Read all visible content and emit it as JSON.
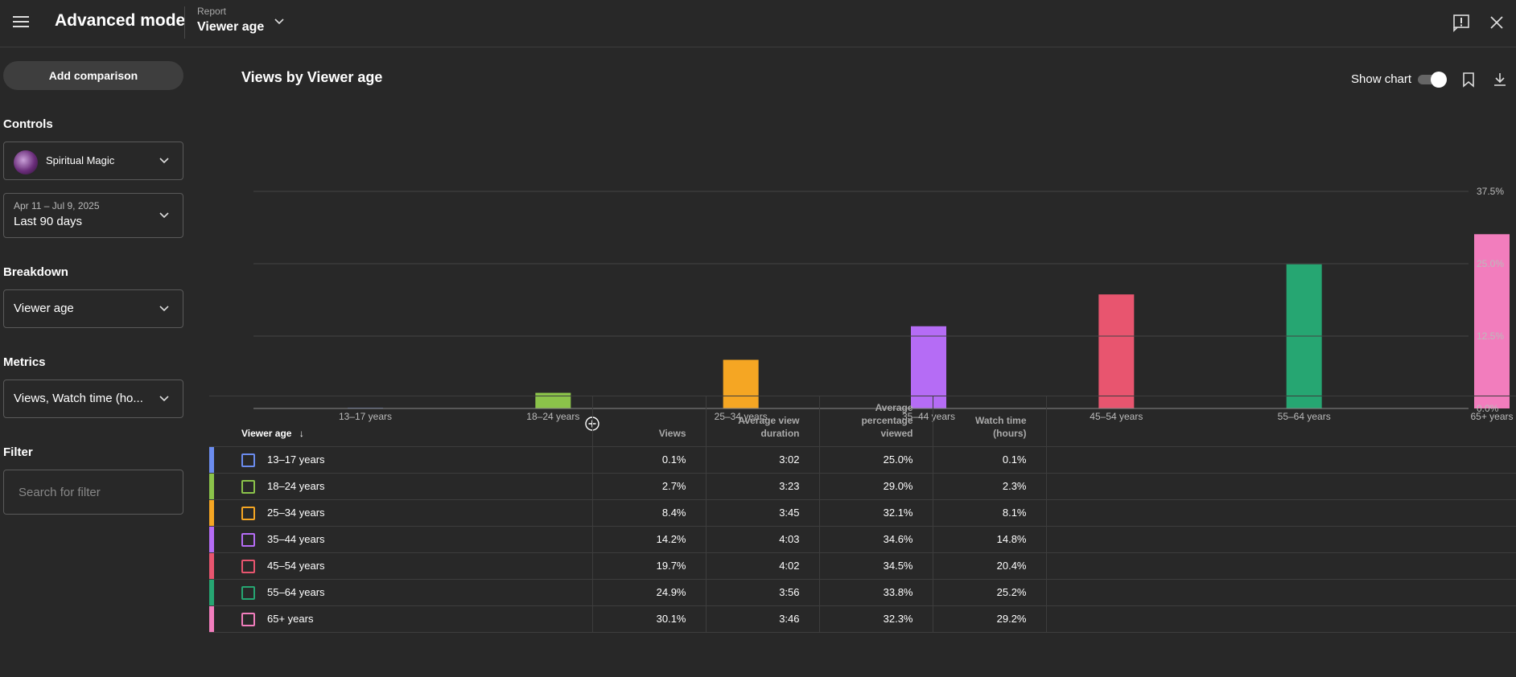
{
  "header": {
    "title": "Advanced mode",
    "report_label": "Report",
    "report_value": "Viewer age"
  },
  "sidebar": {
    "add_comparison": "Add comparison",
    "controls_label": "Controls",
    "channel_name": "Spiritual Magic",
    "date_range_sub": "Apr 11 – Jul 9, 2025",
    "date_range": "Last 90 days",
    "breakdown_label": "Breakdown",
    "breakdown_value": "Viewer age",
    "metrics_label": "Metrics",
    "metrics_value": "Views, Watch time (ho...",
    "filter_label": "Filter",
    "filter_placeholder": "Search for filter"
  },
  "main": {
    "chart_title": "Views by Viewer age",
    "show_chart_label": "Show chart"
  },
  "chart_data": {
    "type": "bar",
    "title": "Views by Viewer age",
    "categories": [
      "13–17 years",
      "18–24 years",
      "25–34 years",
      "35–44 years",
      "45–54 years",
      "55–64 years",
      "65+ years"
    ],
    "values": [
      0.1,
      2.7,
      8.4,
      14.2,
      19.7,
      24.9,
      30.1
    ],
    "colors": [
      "#6b8cef",
      "#8bc34a",
      "#f5a623",
      "#b56cf5",
      "#e8556f",
      "#26a672",
      "#f27dbd"
    ],
    "ylim": [
      0,
      37.5
    ],
    "yticks": [
      "0.0%",
      "12.5%",
      "25.0%",
      "37.5%"
    ],
    "grid": true
  },
  "table": {
    "headers": {
      "name": "Viewer age",
      "views": "Views",
      "avg_duration": [
        "Average view",
        "duration"
      ],
      "avg_pct": [
        "Average",
        "percentage",
        "viewed"
      ],
      "watch_time": [
        "Watch time",
        "(hours)"
      ]
    },
    "rows": [
      {
        "name": "13–17 years",
        "views": "0.1%",
        "duration": "3:02",
        "pct": "25.0%",
        "watch": "0.1%",
        "color": "#6b8cef"
      },
      {
        "name": "18–24 years",
        "views": "2.7%",
        "duration": "3:23",
        "pct": "29.0%",
        "watch": "2.3%",
        "color": "#8bc34a"
      },
      {
        "name": "25–34 years",
        "views": "8.4%",
        "duration": "3:45",
        "pct": "32.1%",
        "watch": "8.1%",
        "color": "#f5a623"
      },
      {
        "name": "35–44 years",
        "views": "14.2%",
        "duration": "4:03",
        "pct": "34.6%",
        "watch": "14.8%",
        "color": "#b56cf5"
      },
      {
        "name": "45–54 years",
        "views": "19.7%",
        "duration": "4:02",
        "pct": "34.5%",
        "watch": "20.4%",
        "color": "#e8556f"
      },
      {
        "name": "55–64 years",
        "views": "24.9%",
        "duration": "3:56",
        "pct": "33.8%",
        "watch": "25.2%",
        "color": "#26a672"
      },
      {
        "name": "65+ years",
        "views": "30.1%",
        "duration": "3:46",
        "pct": "32.3%",
        "watch": "29.2%",
        "color": "#f27dbd"
      }
    ]
  }
}
